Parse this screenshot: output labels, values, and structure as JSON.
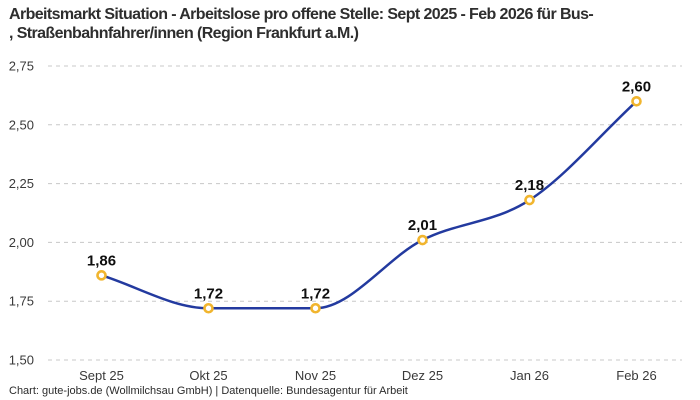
{
  "header": {
    "title_line1": "Arbeitsmarkt Situation - Arbeitslose pro offene Stelle: Sept 2025 - Feb 2026 für Bus-",
    "title_line2": ", Straßenbahnfahrer/innen (Region Frankfurt a.M.)"
  },
  "footer": {
    "credit": "Chart: gute-jobs.de (Wollmilchsau GmbH) | Datenquelle: Bundesagentur für Arbeit"
  },
  "chart_data": {
    "type": "line",
    "title": "Arbeitsmarkt Situation - Arbeitslose pro offene Stelle: Sept 2025 - Feb 2026 für Bus-, Straßenbahnfahrer/innen (Region Frankfurt a.M.)",
    "categories": [
      "Sept 25",
      "Okt 25",
      "Nov 25",
      "Dez 25",
      "Jan 26",
      "Feb 26"
    ],
    "values": [
      1.86,
      1.72,
      1.72,
      2.01,
      2.18,
      2.6
    ],
    "value_labels": [
      "1,86",
      "1,72",
      "1,72",
      "2,01",
      "2,18",
      "2,60"
    ],
    "y_ticks": [
      2.75,
      2.5,
      2.25,
      2.0,
      1.75,
      1.5
    ],
    "y_tick_labels": [
      "2,75",
      "2,50",
      "2,25",
      "2,00",
      "1,75",
      "1,50"
    ],
    "ylim": [
      1.5,
      2.75
    ],
    "xlabel": "",
    "ylabel": "",
    "grid": "dashed-horizontal",
    "legend": "none",
    "curve": "smooth-monotone",
    "colors": {
      "line": "#233a9f",
      "marker_stroke": "#f1b52e",
      "marker_fill": "#ffffff",
      "gridline": "#c8c8c8",
      "data_label": "#0f0f0f",
      "axis_text": "#3a3a3a"
    }
  }
}
